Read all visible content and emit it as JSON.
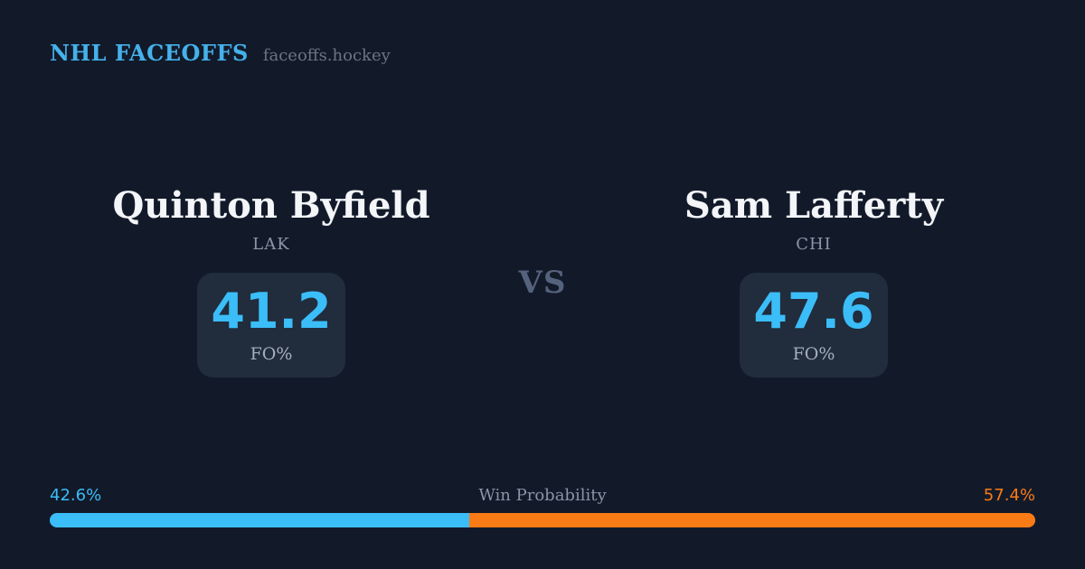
{
  "header": {
    "brand": "NHL FACEOFFS",
    "site": "faceoffs.hockey"
  },
  "matchup": {
    "vs_label": "VS",
    "left": {
      "name": "Quinton Byfield",
      "team": "LAK",
      "stat_value": "41.2",
      "stat_label": "FO%"
    },
    "right": {
      "name": "Sam Lafferty",
      "team": "CHI",
      "stat_value": "47.6",
      "stat_label": "FO%"
    }
  },
  "win_probability": {
    "title": "Win Probability",
    "left_pct": 42.6,
    "right_pct": 57.4,
    "left_pct_label": "42.6%",
    "right_pct_label": "57.4%"
  },
  "colors": {
    "background": "#121a2a",
    "card": "#212c3c",
    "accent_blue": "#3bbdf8",
    "accent_orange": "#f97b16",
    "brand_blue": "#45b1eb",
    "name_white": "#f3f5f8",
    "muted_gray": "#8d96a7"
  },
  "chart_data": {
    "type": "bar",
    "title": "Win Probability",
    "categories": [
      "Quinton Byfield (LAK)",
      "Sam Lafferty (CHI)"
    ],
    "series": [
      {
        "name": "FO%",
        "values": [
          41.2,
          47.6
        ]
      },
      {
        "name": "Win Probability %",
        "values": [
          42.6,
          57.4
        ]
      }
    ],
    "xlim": [
      0,
      100
    ],
    "legend_position": "none",
    "grid": false,
    "colors": [
      "#3bbdf8",
      "#f97b16"
    ]
  }
}
